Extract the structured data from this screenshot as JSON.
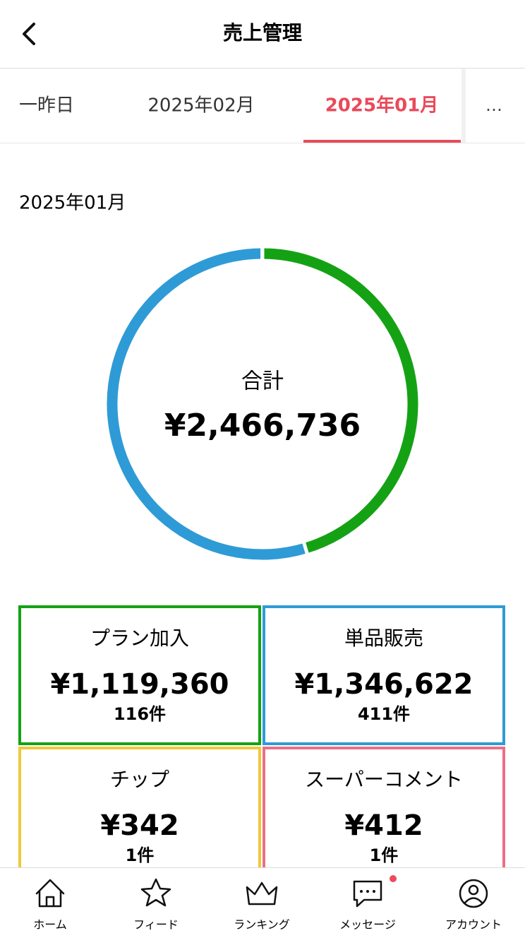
{
  "header": {
    "title": "売上管理"
  },
  "tabs": {
    "items": [
      "一昨日",
      "2025年02月",
      "2025年01月"
    ],
    "more": "…",
    "active": 2
  },
  "section": {
    "label": "2025年01月"
  },
  "chart_data": {
    "type": "donut",
    "center_label": "合計",
    "total_label": "¥2,466,736",
    "categories": [
      "プラン加入",
      "単品販売",
      "チップ",
      "スーパーコメント"
    ],
    "values": [
      1119360,
      1346622,
      342,
      412
    ],
    "value_labels": [
      "¥1,119,360",
      "¥1,346,622",
      "¥342",
      "¥412"
    ],
    "counts": [
      "116件",
      "411件",
      "1件",
      "1件"
    ],
    "colors": [
      "#14a214",
      "#2e9bd6",
      "#f0c93c",
      "#ec6f86"
    ]
  },
  "nav": [
    {
      "label": "ホーム"
    },
    {
      "label": "フィード"
    },
    {
      "label": "ランキング"
    },
    {
      "label": "メッセージ"
    },
    {
      "label": "アカウント"
    }
  ]
}
